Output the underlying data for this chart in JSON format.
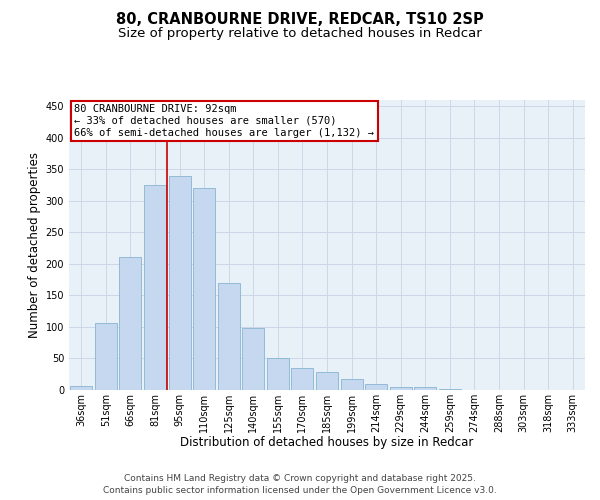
{
  "title_line1": "80, CRANBOURNE DRIVE, REDCAR, TS10 2SP",
  "title_line2": "Size of property relative to detached houses in Redcar",
  "xlabel": "Distribution of detached houses by size in Redcar",
  "ylabel": "Number of detached properties",
  "categories": [
    "36sqm",
    "51sqm",
    "66sqm",
    "81sqm",
    "95sqm",
    "110sqm",
    "125sqm",
    "140sqm",
    "155sqm",
    "170sqm",
    "185sqm",
    "199sqm",
    "214sqm",
    "229sqm",
    "244sqm",
    "259sqm",
    "274sqm",
    "288sqm",
    "303sqm",
    "318sqm",
    "333sqm"
  ],
  "values": [
    6,
    107,
    211,
    325,
    340,
    320,
    170,
    99,
    51,
    35,
    29,
    17,
    10,
    4,
    4,
    1,
    0,
    0,
    0,
    0,
    0
  ],
  "bar_color": "#c5d8f0",
  "bar_edge_color": "#7aabcc",
  "red_line_index": 4,
  "annotation_text": "80 CRANBOURNE DRIVE: 92sqm\n← 33% of detached houses are smaller (570)\n66% of semi-detached houses are larger (1,132) →",
  "annotation_box_color": "#ffffff",
  "annotation_box_edge": "#cc0000",
  "red_line_color": "#cc0000",
  "grid_color": "#ccd8e8",
  "background_color": "#e8f0f8",
  "ylim": [
    0,
    460
  ],
  "yticks": [
    0,
    50,
    100,
    150,
    200,
    250,
    300,
    350,
    400,
    450
  ],
  "footer_line1": "Contains HM Land Registry data © Crown copyright and database right 2025.",
  "footer_line2": "Contains public sector information licensed under the Open Government Licence v3.0.",
  "title_fontsize": 10.5,
  "subtitle_fontsize": 9.5,
  "axis_label_fontsize": 8.5,
  "tick_fontsize": 7,
  "annotation_fontsize": 7.5,
  "footer_fontsize": 6.5
}
